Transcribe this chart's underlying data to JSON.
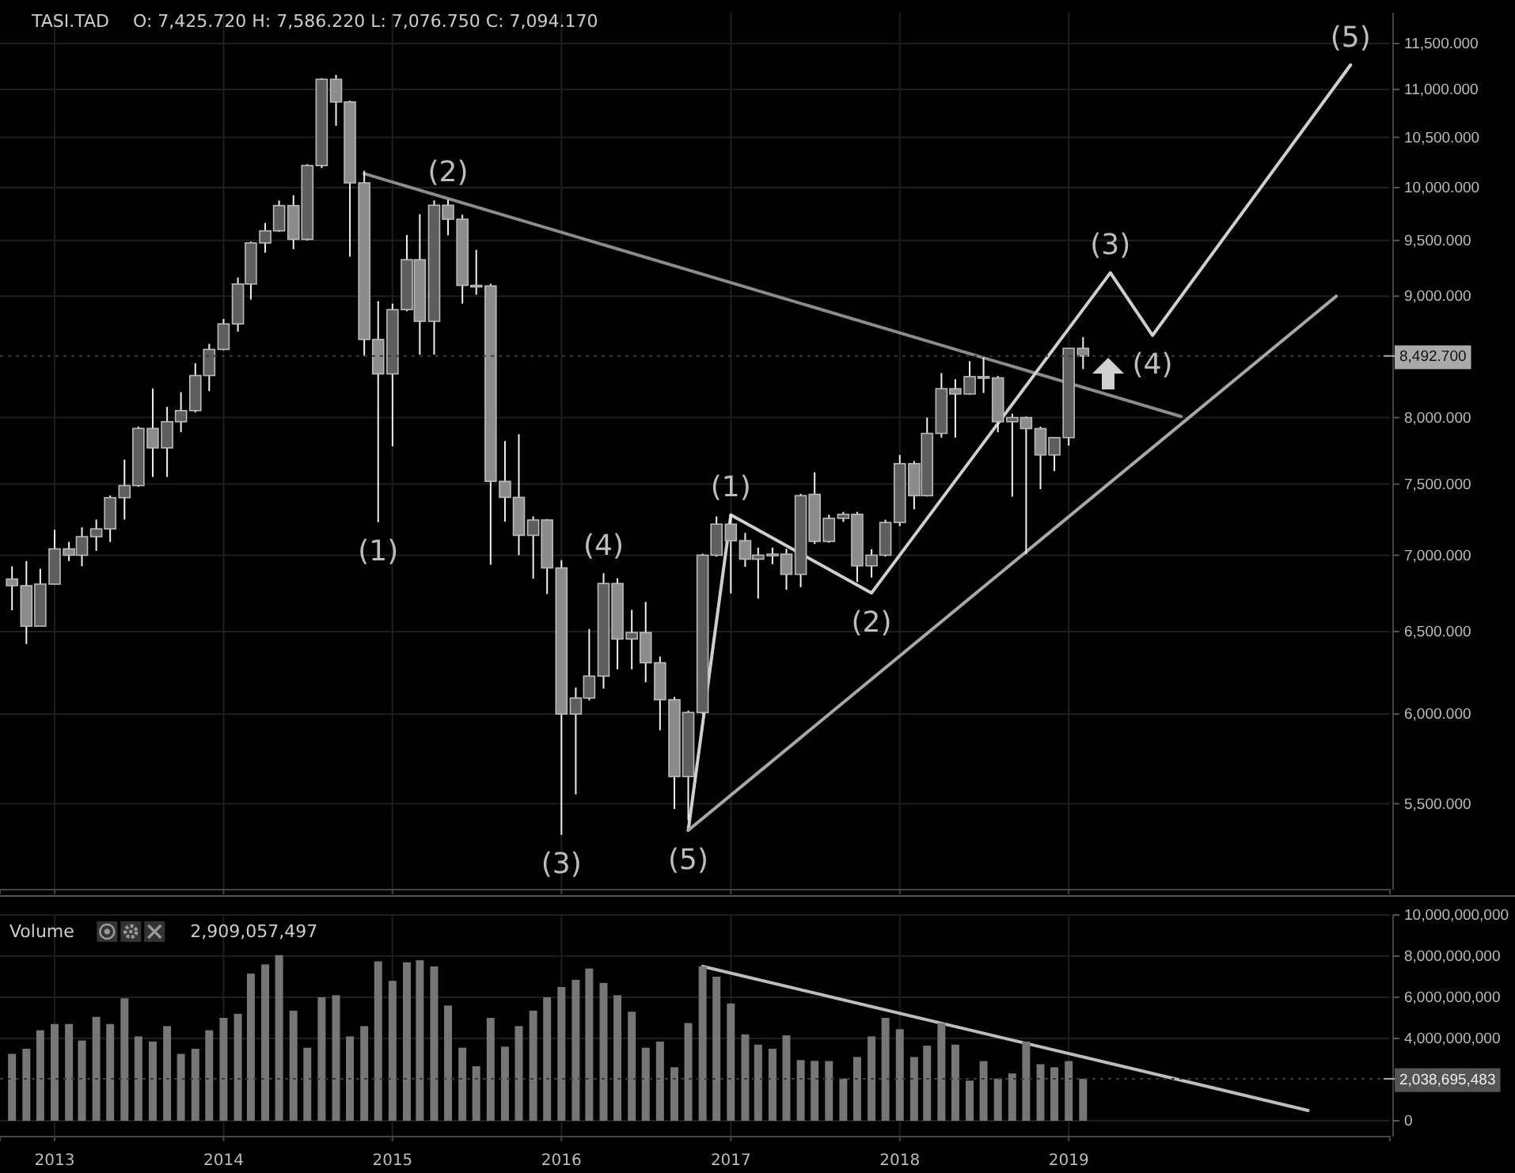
{
  "chart_data": [
    {
      "type": "candlestick",
      "title": "TASI.TAD",
      "annotations": [
        "O: 7,425.720  H: 7,586.220  L: 7,076.750  C: 7,094.170",
        {
          "text": "(1)",
          "x": "2014-12",
          "y": 7228
        },
        {
          "text": "(2)",
          "x": "2015-05",
          "y": 9882
        },
        {
          "text": "(3)",
          "x": "2016-01",
          "y": 5336
        },
        {
          "text": "(4)",
          "x": "2016-04",
          "y": 6879
        },
        {
          "text": "(5)",
          "x": "2016-10",
          "y": 5360
        },
        {
          "text": "(1)",
          "x": "2017-01",
          "y": 7279
        },
        {
          "text": "(2)",
          "x": "2017-11",
          "y": 6748
        },
        {
          "text": "(3)",
          "x": "2019-04",
          "y": 9207
        },
        {
          "text": "(4)",
          "x": "2019-07",
          "y": 8664
        },
        {
          "text": "(5)",
          "x": "2020-09",
          "y": 11264
        }
      ],
      "x": [
        "2012-10",
        "2012-11",
        "2012-12",
        "2013-01",
        "2013-02",
        "2013-03",
        "2013-04",
        "2013-05",
        "2013-06",
        "2013-07",
        "2013-08",
        "2013-09",
        "2013-10",
        "2013-11",
        "2013-12",
        "2014-01",
        "2014-02",
        "2014-03",
        "2014-04",
        "2014-05",
        "2014-06",
        "2014-07",
        "2014-08",
        "2014-09",
        "2014-10",
        "2014-11",
        "2014-12",
        "2015-01",
        "2015-02",
        "2015-03",
        "2015-04",
        "2015-05",
        "2015-06",
        "2015-07",
        "2015-08",
        "2015-09",
        "2015-10",
        "2015-11",
        "2015-12",
        "2016-01",
        "2016-02",
        "2016-03",
        "2016-04",
        "2016-05",
        "2016-06",
        "2016-07",
        "2016-08",
        "2016-09",
        "2016-10",
        "2016-11",
        "2016-12",
        "2017-01",
        "2017-02",
        "2017-03",
        "2017-04",
        "2017-05",
        "2017-06",
        "2017-07",
        "2017-08",
        "2017-09",
        "2017-10",
        "2017-11",
        "2017-12",
        "2018-01",
        "2018-02",
        "2018-03",
        "2018-04",
        "2018-05",
        "2018-06",
        "2018-07",
        "2018-08",
        "2018-09",
        "2018-10",
        "2018-11",
        "2018-12",
        "2019-01",
        "2019-02"
      ],
      "ohlc": [
        [
          6840,
          6925,
          6636,
          6796
        ],
        [
          6796,
          6960,
          6422,
          6534
        ],
        [
          6534,
          6908,
          6534,
          6806
        ],
        [
          6806,
          7174,
          6803,
          7043
        ],
        [
          7043,
          7090,
          6960,
          7000
        ],
        [
          7000,
          7192,
          6925,
          7127
        ],
        [
          7127,
          7246,
          7029,
          7181
        ],
        [
          7181,
          7417,
          7090,
          7402
        ],
        [
          7402,
          7680,
          7246,
          7489
        ],
        [
          7489,
          7930,
          7480,
          7916
        ],
        [
          7916,
          8229,
          7552,
          7768
        ],
        [
          7768,
          8083,
          7552,
          7968
        ],
        [
          7968,
          8200,
          7888,
          8054
        ],
        [
          8054,
          8433,
          8040,
          8333
        ],
        [
          8333,
          8593,
          8208,
          8547
        ],
        [
          8547,
          8804,
          8540,
          8761
        ],
        [
          8761,
          9164,
          8696,
          9107
        ],
        [
          9107,
          9490,
          8970,
          9477
        ],
        [
          9477,
          9663,
          9388,
          9589
        ],
        [
          9589,
          9876,
          9580,
          9827
        ],
        [
          9827,
          9926,
          9420,
          9510
        ],
        [
          9510,
          10230,
          9500,
          10216
        ],
        [
          10216,
          11120,
          10191,
          11108
        ],
        [
          11108,
          11156,
          10618,
          10866
        ],
        [
          10866,
          10880,
          9351,
          10046
        ],
        [
          10046,
          10165,
          8492,
          8630
        ],
        [
          8630,
          8957,
          7228,
          8346
        ],
        [
          8346,
          8935,
          7780,
          8883
        ],
        [
          8883,
          9550,
          8870,
          9324
        ],
        [
          9324,
          9745,
          8504,
          8783
        ],
        [
          8783,
          9877,
          8504,
          9830
        ],
        [
          9830,
          9882,
          9547,
          9698
        ],
        [
          9698,
          9740,
          8935,
          9095
        ],
        [
          9095,
          9414,
          9013,
          9090
        ],
        [
          9090,
          9110,
          6936,
          7520
        ],
        [
          7520,
          7820,
          7232,
          7404
        ],
        [
          7404,
          7872,
          7000,
          7136
        ],
        [
          7136,
          7268,
          6843,
          7243
        ],
        [
          7243,
          7250,
          6741,
          6914
        ],
        [
          6914,
          6966,
          5336,
          6000
        ],
        [
          6000,
          6156,
          5550,
          6094
        ],
        [
          6094,
          6516,
          6080,
          6225
        ],
        [
          6225,
          6879,
          6150,
          6810
        ],
        [
          6810,
          6845,
          6266,
          6453
        ],
        [
          6453,
          6638,
          6266,
          6494
        ],
        [
          6494,
          6690,
          6188,
          6306
        ],
        [
          6306,
          6344,
          5906,
          6084
        ],
        [
          6084,
          6100,
          5472,
          5647
        ],
        [
          5647,
          6020,
          5412,
          6009
        ],
        [
          6009,
          7010,
          6000,
          7000
        ],
        [
          7000,
          7268,
          6990,
          7214
        ],
        [
          7214,
          7281,
          6745,
          7099
        ],
        [
          7099,
          7153,
          6922,
          6973
        ],
        [
          6973,
          7051,
          6711,
          7000
        ],
        [
          7000,
          7051,
          6939,
          7007
        ],
        [
          7007,
          7044,
          6769,
          6871
        ],
        [
          6871,
          7430,
          6786,
          7416
        ],
        [
          7425.72,
          7586.22,
          7076.75,
          7094.17
        ],
        [
          7094,
          7280,
          7085,
          7255
        ],
        [
          7255,
          7300,
          7230,
          7283
        ],
        [
          7283,
          7300,
          6820,
          6928
        ],
        [
          6928,
          7040,
          6850,
          7000
        ],
        [
          7000,
          7245,
          6990,
          7226
        ],
        [
          7226,
          7715,
          7200,
          7650
        ],
        [
          7650,
          7670,
          7318,
          7416
        ],
        [
          7416,
          8000,
          7410,
          7878
        ],
        [
          7878,
          8353,
          7846,
          8227
        ],
        [
          8227,
          8303,
          7846,
          8185
        ],
        [
          8185,
          8450,
          8180,
          8324
        ],
        [
          8324,
          8479,
          8193,
          8314
        ],
        [
          8314,
          8330,
          7887,
          7968
        ],
        [
          7968,
          8030,
          7409,
          8000
        ],
        [
          8000,
          8008,
          7007,
          7915
        ],
        [
          7915,
          7930,
          7463,
          7715
        ],
        [
          7715,
          7846,
          7595,
          7846
        ],
        [
          7846,
          8556,
          7785,
          8556
        ],
        [
          8556,
          8650,
          8385,
          8492.7
        ]
      ],
      "colors": [
        "#8c8c8c",
        "#8c8c8c",
        "#5e5e5e",
        "#5e5e5e",
        "#8c8c8c",
        "#5e5e5e",
        "#5e5e5e",
        "#5e5e5e",
        "#5e5e5e",
        "#5e5e5e",
        "#8c8c8c",
        "#5e5e5e",
        "#5e5e5e",
        "#5e5e5e",
        "#5e5e5e",
        "#5e5e5e",
        "#5e5e5e",
        "#5e5e5e",
        "#5e5e5e",
        "#5e5e5e",
        "#8c8c8c",
        "#5e5e5e",
        "#5e5e5e",
        "#8c8c8c",
        "#8c8c8c",
        "#8c8c8c",
        "#8c8c8c",
        "#5e5e5e",
        "#5e5e5e",
        "#8c8c8c",
        "#5e5e5e",
        "#8c8c8c",
        "#8c8c8c",
        "#8c8c8c",
        "#8c8c8c",
        "#8c8c8c",
        "#8c8c8c",
        "#5e5e5e",
        "#8c8c8c",
        "#8c8c8c",
        "#5e5e5e",
        "#5e5e5e",
        "#5e5e5e",
        "#8c8c8c",
        "#5e5e5e",
        "#8c8c8c",
        "#8c8c8c",
        "#8c8c8c",
        "#5e5e5e",
        "#5e5e5e",
        "#5e5e5e",
        "#8c8c8c",
        "#8c8c8c",
        "#5e5e5e",
        "#5e5e5e",
        "#8c8c8c",
        "#5e5e5e",
        "#8c8c8c",
        "#5e5e5e",
        "#5e5e5e",
        "#8c8c8c",
        "#5e5e5e",
        "#5e5e5e",
        "#5e5e5e",
        "#8c8c8c",
        "#5e5e5e",
        "#5e5e5e",
        "#8c8c8c",
        "#5e5e5e",
        "#8c8c8c",
        "#8c8c8c",
        "#5e5e5e",
        "#8c8c8c",
        "#8c8c8c",
        "#5e5e5e",
        "#5e5e5e",
        "#8c8c8c"
      ],
      "series": [
        {
          "type": "line",
          "x": [
            "2014-11",
            "2019-09"
          ],
          "values": [
            10136,
            8008
          ],
          "color": "#8c8c8c"
        },
        {
          "type": "line",
          "x": [
            "2016-10",
            "2017-01",
            "2017-11",
            "2019-04",
            "2019-07",
            "2020-09"
          ],
          "values": [
            5360,
            7279,
            6748,
            9207,
            8664,
            11264
          ],
          "color": "#cfcfcf"
        },
        {
          "type": "line",
          "x": [
            "2016-10",
            "2020-08"
          ],
          "values": [
            5360,
            9000
          ],
          "color": "#a8a8a8"
        }
      ],
      "log": true,
      "ylim": [
        5060,
        11850
      ],
      "yticks": [
        {
          "value": 5500,
          "label": "5,500.000"
        },
        {
          "value": 6000,
          "label": "6,000.000"
        },
        {
          "value": 6500,
          "label": "6,500.000"
        },
        {
          "value": 7000,
          "label": "7,000.000"
        },
        {
          "value": 7500,
          "label": "7,500.000"
        },
        {
          "value": 8000,
          "label": "8,000.000"
        },
        {
          "value": 9000,
          "label": "9,000.000"
        },
        {
          "value": 9500,
          "label": "9,500.000"
        },
        {
          "value": 10000,
          "label": "10,000.000"
        },
        {
          "value": 10500,
          "label": "10,500.000"
        },
        {
          "value": 11000,
          "label": "11,000.000"
        },
        {
          "value": 11500,
          "label": "11,500.000"
        }
      ],
      "xlim": [
        "2012-09-05",
        "2020-11-25"
      ],
      "xticks": [
        "2013",
        "2014",
        "2015",
        "2016",
        "2017",
        "2018",
        "2019"
      ],
      "ref_lines": [
        {
          "axis": "y",
          "value": 8492.7,
          "label": "8,492.700"
        }
      ],
      "grid": true,
      "tick_labels": "y"
    },
    {
      "type": "bar",
      "title": "Volume",
      "annotations": [
        "2,909,057,497"
      ],
      "x": [
        "2012-10",
        "2012-11",
        "2012-12",
        "2013-01",
        "2013-02",
        "2013-03",
        "2013-04",
        "2013-05",
        "2013-06",
        "2013-07",
        "2013-08",
        "2013-09",
        "2013-10",
        "2013-11",
        "2013-12",
        "2014-01",
        "2014-02",
        "2014-03",
        "2014-04",
        "2014-05",
        "2014-06",
        "2014-07",
        "2014-08",
        "2014-09",
        "2014-10",
        "2014-11",
        "2014-12",
        "2015-01",
        "2015-02",
        "2015-03",
        "2015-04",
        "2015-05",
        "2015-06",
        "2015-07",
        "2015-08",
        "2015-09",
        "2015-10",
        "2015-11",
        "2015-12",
        "2016-01",
        "2016-02",
        "2016-03",
        "2016-04",
        "2016-05",
        "2016-06",
        "2016-07",
        "2016-08",
        "2016-09",
        "2016-10",
        "2016-11",
        "2016-12",
        "2017-01",
        "2017-02",
        "2017-03",
        "2017-04",
        "2017-05",
        "2017-06",
        "2017-07",
        "2017-08",
        "2017-09",
        "2017-10",
        "2017-11",
        "2017-12",
        "2018-01",
        "2018-02",
        "2018-03",
        "2018-04",
        "2018-05",
        "2018-06",
        "2018-07",
        "2018-08",
        "2018-09",
        "2018-10",
        "2018-11",
        "2018-12",
        "2019-01",
        "2019-02"
      ],
      "values": [
        3250000000,
        3500000000,
        4400000000,
        4700000000,
        4700000000,
        3900000000,
        5050000000,
        4700000000,
        5950000000,
        4100000000,
        3850000000,
        4600000000,
        3250000000,
        3500000000,
        4400000000,
        5000000000,
        5200000000,
        7150000000,
        7600000000,
        8050000000,
        5350000000,
        3550000000,
        6000000000,
        6100000000,
        4100000000,
        4600000000,
        7750000000,
        6800000000,
        7700000000,
        7800000000,
        7500000000,
        5600000000,
        3550000000,
        2650000000,
        5000000000,
        3600000000,
        4600000000,
        5350000000,
        6000000000,
        6500000000,
        6850000000,
        7400000000,
        6700000000,
        6100000000,
        5300000000,
        3550000000,
        3850000000,
        2600000000,
        4750000000,
        7500000000,
        7000000000,
        5700000000,
        4200000000,
        3700000000,
        3500000000,
        4150000000,
        2950000000,
        2910000000,
        2900000000,
        2050000000,
        3100000000,
        4100000000,
        5000000000,
        4450000000,
        3100000000,
        3650000000,
        4750000000,
        3700000000,
        1950000000,
        2900000000,
        2050000000,
        2300000000,
        3850000000,
        2750000000,
        2600000000,
        2900000000,
        2040000000
      ],
      "color": "#767676",
      "series": [
        {
          "type": "line",
          "x": [
            "2016-11",
            "2020-06"
          ],
          "values": [
            7500000000,
            500000000
          ],
          "color": "#bdbdbd"
        }
      ],
      "ylim": [
        0,
        10000000000
      ],
      "yticks": [
        {
          "value": 0,
          "label": "0"
        },
        {
          "value": 4000000000,
          "label": "4,000,000,000"
        },
        {
          "value": 6000000000,
          "label": "6,000,000,000"
        },
        {
          "value": 8000000000,
          "label": "8,000,000,000"
        },
        {
          "value": 10000000000,
          "label": "10,000,000,000"
        }
      ],
      "xlim": [
        "2012-09-05",
        "2020-11-25"
      ],
      "xticks": [
        "2013",
        "2014",
        "2015",
        "2016",
        "2017",
        "2018",
        "2019"
      ],
      "ref_lines": [
        {
          "axis": "y",
          "value": 2038695483,
          "label": "2,038,695,483"
        }
      ],
      "grid": true
    }
  ]
}
